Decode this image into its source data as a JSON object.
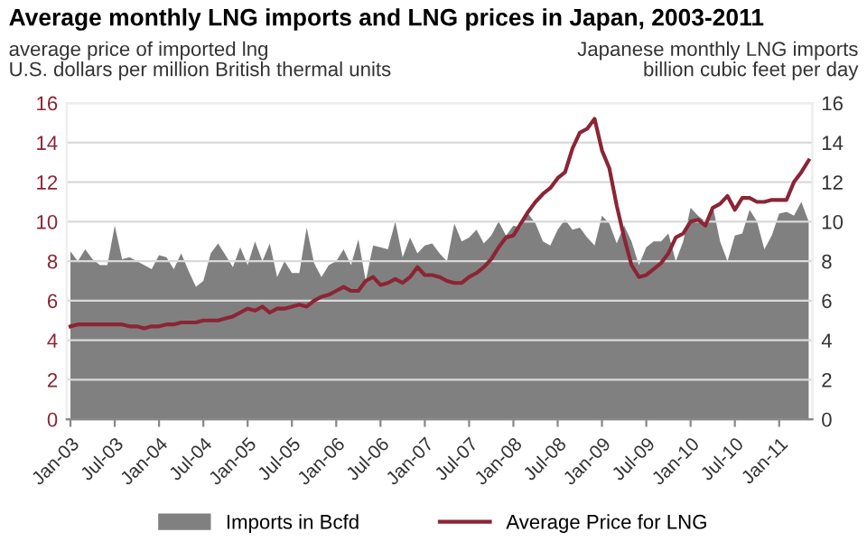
{
  "chart_data": {
    "type": "line",
    "title": "Average monthly LNG imports and LNG prices in Japan, 2003-2011",
    "ylabel": "average price of imported lng\nU.S. dollars per million British thermal units",
    "y2label": "Japanese monthly LNG imports\nbillion cubic feet per day",
    "categories": [
      "Jan-03",
      null,
      null,
      null,
      null,
      null,
      "Jul-03",
      null,
      null,
      null,
      null,
      null,
      "Jan-04",
      null,
      null,
      null,
      null,
      null,
      "Jul-04",
      null,
      null,
      null,
      null,
      null,
      "Jan-05",
      null,
      null,
      null,
      null,
      null,
      "Jul-05",
      null,
      null,
      null,
      null,
      null,
      "Jan-06",
      null,
      null,
      null,
      null,
      null,
      "Jul-06",
      null,
      null,
      null,
      null,
      null,
      "Jan-07",
      null,
      null,
      null,
      null,
      null,
      "Jul-07",
      null,
      null,
      null,
      null,
      null,
      "Jan-08",
      null,
      null,
      null,
      null,
      null,
      "Jul-08",
      null,
      null,
      null,
      null,
      null,
      "Jan-09",
      null,
      null,
      null,
      null,
      null,
      "Jul-09",
      null,
      null,
      null,
      null,
      null,
      "Jan-10",
      null,
      null,
      null,
      null,
      null,
      "Jul-10",
      null,
      null,
      null,
      null,
      null,
      "Jan-11",
      null,
      null,
      null,
      null
    ],
    "series": [
      {
        "name": "Imports in Bcfd",
        "type": "area",
        "axis": "y2",
        "color": "#808080",
        "values": [
          8.5,
          8.0,
          8.6,
          8.1,
          7.8,
          7.8,
          9.8,
          8.1,
          8.2,
          8.0,
          7.8,
          7.6,
          8.3,
          8.2,
          7.6,
          8.4,
          7.5,
          6.7,
          7.0,
          8.4,
          8.9,
          8.3,
          7.7,
          8.7,
          7.8,
          9.0,
          8.0,
          8.9,
          7.2,
          8.0,
          7.4,
          7.4,
          9.7,
          7.9,
          7.2,
          7.8,
          8.0,
          8.6,
          7.8,
          9.1,
          7.0,
          8.8,
          8.7,
          8.6,
          10.0,
          8.2,
          9.2,
          8.4,
          8.8,
          8.9,
          8.4,
          8.0,
          9.9,
          9.0,
          9.2,
          9.6,
          8.9,
          9.3,
          10.0,
          9.3,
          9.8,
          9.7,
          10.4,
          9.9,
          9.0,
          8.8,
          9.6,
          10.1,
          9.6,
          9.7,
          9.2,
          8.8,
          10.3,
          9.9,
          8.9,
          9.8,
          9.0,
          7.8,
          8.7,
          9.0,
          9.0,
          9.4,
          8.0,
          9.0,
          10.7,
          10.3,
          10.0,
          10.8,
          9.0,
          8.0,
          9.3,
          9.4,
          10.6,
          10.0,
          8.6,
          9.3,
          10.4,
          10.5,
          10.3,
          11.0,
          10.0
        ]
      },
      {
        "name": "Average Price for LNG",
        "axis": "y",
        "color": "#8b2535",
        "values": [
          4.7,
          4.8,
          4.8,
          4.8,
          4.8,
          4.8,
          4.8,
          4.8,
          4.7,
          4.7,
          4.6,
          4.7,
          4.7,
          4.8,
          4.8,
          4.9,
          4.9,
          4.9,
          5.0,
          5.0,
          5.0,
          5.1,
          5.2,
          5.4,
          5.6,
          5.5,
          5.7,
          5.4,
          5.6,
          5.6,
          5.7,
          5.8,
          5.7,
          6.0,
          6.2,
          6.3,
          6.5,
          6.7,
          6.5,
          6.5,
          7.0,
          7.2,
          6.8,
          6.9,
          7.1,
          6.9,
          7.2,
          7.7,
          7.3,
          7.3,
          7.2,
          7.0,
          6.9,
          6.9,
          7.2,
          7.4,
          7.7,
          8.1,
          8.7,
          9.2,
          9.3,
          9.9,
          10.5,
          11.0,
          11.4,
          11.7,
          12.2,
          12.5,
          13.7,
          14.5,
          14.7,
          15.2,
          13.6,
          12.7,
          10.8,
          9.2,
          7.8,
          7.2,
          7.3,
          7.6,
          7.9,
          8.4,
          9.2,
          9.4,
          10.0,
          10.1,
          9.8,
          10.7,
          10.9,
          11.3,
          10.6,
          11.2,
          11.2,
          11.0,
          11.0,
          11.1,
          11.1,
          11.1,
          12.0,
          12.5,
          13.1
        ]
      }
    ],
    "ylim": [
      0,
      16
    ],
    "yticks": [
      0,
      2,
      4,
      6,
      8,
      10,
      12,
      14,
      16
    ],
    "y2lim": [
      0,
      16
    ],
    "y2ticks": [
      0,
      2,
      4,
      6,
      8,
      10,
      12,
      14,
      16
    ],
    "grid": "y",
    "legend": "bottom",
    "marker": "none",
    "line_style": "solid"
  }
}
